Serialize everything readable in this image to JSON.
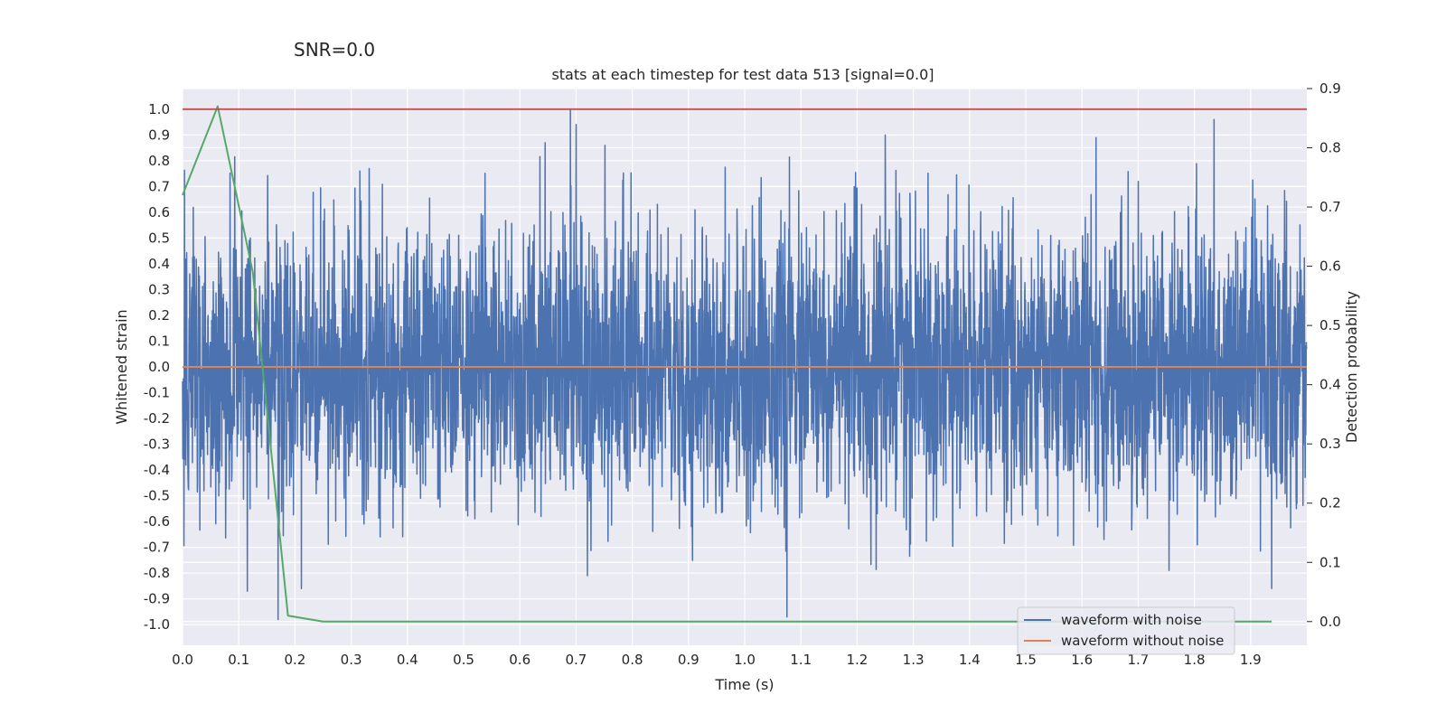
{
  "suptitle": "SNR=0.0",
  "chart_data": {
    "type": "line",
    "title": "stats at each timestep for test data 513 [signal=0.0]",
    "xlabel": "Time (s)",
    "ylabel": "Whitened strain",
    "y2label": "Detection probability",
    "xlim": [
      0.0,
      2.0
    ],
    "ylim": [
      -1.08,
      1.08
    ],
    "y2lim": [
      -0.04,
      0.9
    ],
    "xticks": [
      "0.0",
      "0.1",
      "0.2",
      "0.3",
      "0.4",
      "0.5",
      "0.6",
      "0.7",
      "0.8",
      "0.9",
      "1.0",
      "1.1",
      "1.2",
      "1.3",
      "1.4",
      "1.5",
      "1.6",
      "1.7",
      "1.8",
      "1.9"
    ],
    "yticks": [
      "-1.0",
      "-0.9",
      "-0.8",
      "-0.7",
      "-0.6",
      "-0.5",
      "-0.4",
      "-0.3",
      "-0.2",
      "-0.1",
      "0.0",
      "0.1",
      "0.2",
      "0.3",
      "0.4",
      "0.5",
      "0.6",
      "0.7",
      "0.8",
      "0.9",
      "1.0"
    ],
    "y2ticks": [
      "0.0",
      "0.1",
      "0.2",
      "0.3",
      "0.4",
      "0.5",
      "0.6",
      "0.7",
      "0.8",
      "0.9"
    ],
    "grid": true,
    "legend_position": "lower-right",
    "colors": {
      "background": "#eaeaf2",
      "grid": "#ffffff",
      "noise": "#4c72b0",
      "clean": "#dd8452",
      "probability": "#55a868",
      "threshold": "#c44e52"
    },
    "series": [
      {
        "name": "waveform with noise",
        "axis": "left",
        "note": "dense noise trace, about 4096 samples in [-0.98, 1.0]; extreme values listed",
        "extremes": [
          {
            "x": 0.69,
            "y": 1.0
          },
          {
            "x": 0.7,
            "y": 0.94
          },
          {
            "x": 0.645,
            "y": 0.87
          },
          {
            "x": 1.835,
            "y": 0.96
          },
          {
            "x": 1.25,
            "y": 0.9
          },
          {
            "x": 1.625,
            "y": 0.89
          },
          {
            "x": 0.17,
            "y": -0.98
          },
          {
            "x": 1.075,
            "y": -0.97
          },
          {
            "x": 0.115,
            "y": -0.87
          },
          {
            "x": 0.72,
            "y": -0.81
          },
          {
            "x": 1.755,
            "y": -0.79
          }
        ]
      },
      {
        "name": "waveform without noise",
        "axis": "left",
        "x": [
          0.0,
          2.0
        ],
        "y": [
          0.0,
          0.0
        ]
      },
      {
        "axis": "right",
        "x": [
          0.0,
          0.0625,
          0.125,
          0.1875,
          0.25,
          0.3125,
          0.375,
          0.4375,
          0.5,
          0.5625,
          0.625,
          0.6875,
          0.75,
          0.8125,
          0.875,
          0.9375,
          1.0,
          1.0625,
          1.125,
          1.1875,
          1.25,
          1.3125,
          1.375,
          1.4375,
          1.5,
          1.5625,
          1.625,
          1.6875,
          1.75,
          1.8125,
          1.875,
          1.9375
        ],
        "y": [
          0.72,
          0.87,
          0.59,
          0.01,
          0.0,
          0.0,
          0.0,
          0.0,
          0.0,
          0.0,
          0.0,
          0.0,
          0.0,
          0.0,
          0.0,
          0.0,
          0.0,
          0.0,
          0.0,
          0.0,
          0.0,
          0.0,
          0.0,
          0.0,
          0.0,
          0.0,
          0.0,
          0.0,
          0.0,
          0.0,
          0.0,
          0.0
        ]
      },
      {
        "axis": "left",
        "x": [
          0.0,
          2.0
        ],
        "y": [
          1.0,
          1.0
        ]
      }
    ]
  }
}
